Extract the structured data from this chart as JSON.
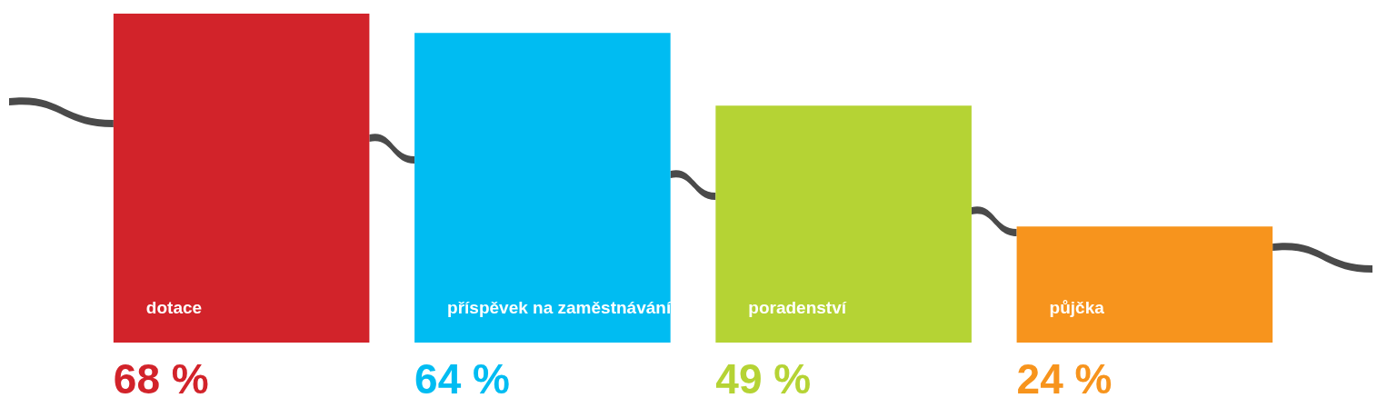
{
  "chart_data": {
    "type": "bar",
    "categories": [
      "dotace",
      "příspěvek na zaměstnávání",
      "poradenství",
      "půjčka"
    ],
    "values": [
      68,
      64,
      49,
      24
    ],
    "colors": [
      "#d2232a",
      "#00bcf2",
      "#b5d334",
      "#f7941d"
    ],
    "value_labels": [
      "68 %",
      "64 %",
      "49 %",
      "24 %"
    ],
    "tick_labels": false,
    "grid": false,
    "legend": false
  }
}
